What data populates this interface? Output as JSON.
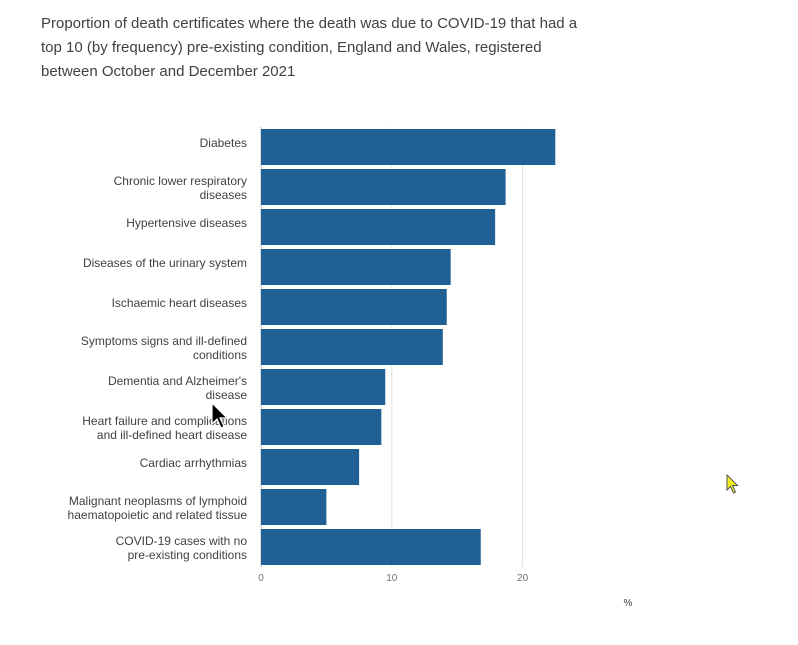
{
  "title_lines": [
    "Proportion of death certificates where the death was due to COVID-19 that had a",
    "top 10 (by frequency) pre-existing condition, England and Wales, registered",
    "between October and December 2021"
  ],
  "chart_data": {
    "type": "bar",
    "orientation": "horizontal",
    "title": "Proportion of death certificates where the death was due to COVID-19 that had a top 10 (by frequency) pre-existing condition, England and Wales, registered between October and December 2021",
    "categories": [
      [
        "Diabetes"
      ],
      [
        "Chronic lower respiratory",
        "diseases"
      ],
      [
        "Hypertensive diseases"
      ],
      [
        "Diseases of the urinary system"
      ],
      [
        "Ischaemic heart diseases"
      ],
      [
        "Symptoms signs and ill-defined",
        "conditions"
      ],
      [
        "Dementia and Alzheimer's",
        "disease"
      ],
      [
        "Heart failure and complications",
        "and ill-defined heart disease"
      ],
      [
        "Cardiac arrhythmias"
      ],
      [
        "Malignant neoplasms of lymphoid",
        "haematopoietic and related tissue"
      ],
      [
        "COVID-19 cases with no",
        "pre-existing conditions"
      ]
    ],
    "values": [
      22.5,
      18.7,
      17.9,
      14.5,
      14.2,
      13.9,
      9.5,
      9.2,
      7.5,
      5.0,
      16.8
    ],
    "xlabel": "%",
    "ylabel": "",
    "xlim": [
      0,
      25
    ],
    "xticks": [
      0,
      10,
      20
    ],
    "grid": true,
    "bar_color": "#206095",
    "grid_color": "#e0e0e0"
  }
}
